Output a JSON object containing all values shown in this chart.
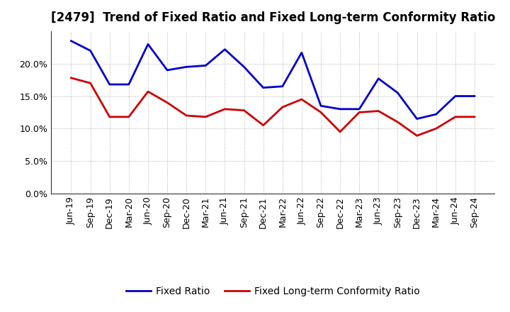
{
  "title": "[2479]  Trend of Fixed Ratio and Fixed Long-term Conformity Ratio",
  "labels": [
    "Jun-19",
    "Sep-19",
    "Dec-19",
    "Mar-20",
    "Jun-20",
    "Sep-20",
    "Dec-20",
    "Mar-21",
    "Jun-21",
    "Sep-21",
    "Dec-21",
    "Mar-22",
    "Jun-22",
    "Sep-22",
    "Dec-22",
    "Mar-23",
    "Jun-23",
    "Sep-23",
    "Dec-23",
    "Mar-24",
    "Jun-24",
    "Sep-24"
  ],
  "fixed_ratio": [
    23.5,
    22.0,
    16.8,
    16.8,
    23.0,
    19.0,
    19.5,
    19.7,
    22.2,
    19.5,
    16.3,
    16.5,
    21.7,
    13.5,
    13.0,
    13.0,
    17.7,
    15.5,
    11.5,
    12.2,
    15.0,
    15.0
  ],
  "fixed_lt_ratio": [
    17.8,
    17.0,
    11.8,
    11.8,
    15.7,
    14.0,
    12.0,
    11.8,
    13.0,
    12.8,
    10.5,
    13.3,
    14.5,
    12.5,
    9.5,
    12.5,
    12.7,
    11.0,
    8.9,
    10.0,
    11.8,
    11.8
  ],
  "fixed_ratio_color": "#0000cc",
  "fixed_lt_ratio_color": "#cc0000",
  "ylim": [
    0,
    25
  ],
  "yticks": [
    0,
    5,
    10,
    15,
    20
  ],
  "background_color": "#ffffff",
  "plot_bg_color": "#ffffff",
  "grid_color": "#999999",
  "legend_fixed": "Fixed Ratio",
  "legend_lt": "Fixed Long-term Conformity Ratio",
  "line_width": 2.0,
  "title_fontsize": 12,
  "tick_fontsize": 9,
  "legend_fontsize": 10
}
